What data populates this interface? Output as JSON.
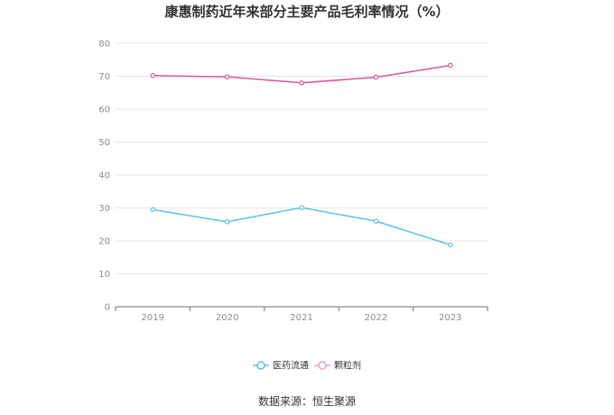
{
  "chart_data": {
    "type": "line",
    "title": "康惠制药近年来部分主要产品毛利率情况（%）",
    "categories": [
      "2019",
      "2020",
      "2021",
      "2022",
      "2023"
    ],
    "series": [
      {
        "name": "医药流通",
        "values": [
          29.5,
          25.8,
          30.1,
          26.0,
          18.8
        ],
        "color": "#5bc0eb"
      },
      {
        "name": "颗粒剂",
        "values": [
          70.2,
          69.8,
          68.0,
          69.7,
          73.3
        ],
        "color": "#d9569e"
      }
    ],
    "ylim": [
      0,
      80
    ],
    "yticks": [
      "0",
      "10",
      "20",
      "30",
      "40",
      "50",
      "60",
      "70",
      "80"
    ],
    "grid": true,
    "legend_position": "bottom",
    "source": "数据来源：恒生聚源"
  }
}
